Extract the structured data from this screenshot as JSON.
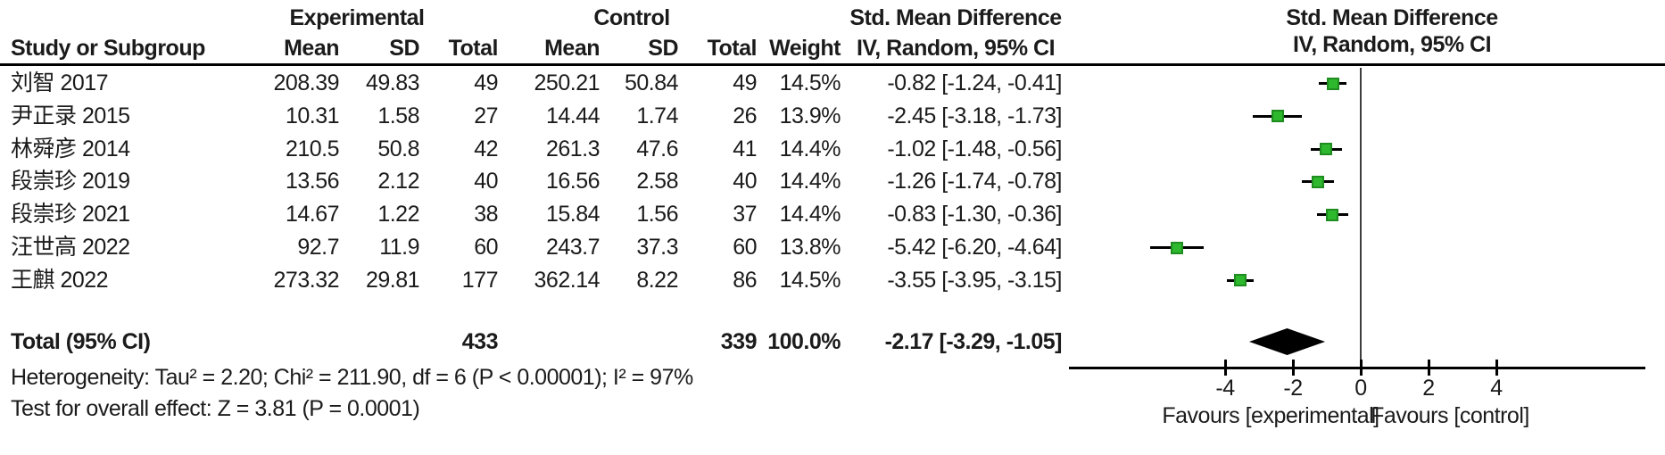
{
  "chart_data": {
    "type": "forest",
    "effect_measure": "Std. Mean Difference",
    "method": "IV, Random, 95% CI",
    "header": {
      "group1": "Experimental",
      "group2": "Control",
      "smd_left": "Std. Mean Difference",
      "smd_right": "Std. Mean Difference",
      "ci_left": "IV, Random, 95% CI",
      "ci_right": "IV, Random, 95% CI",
      "columns": {
        "study": "Study or Subgroup",
        "mean1": "Mean",
        "sd1": "SD",
        "total1": "Total",
        "mean2": "Mean",
        "sd2": "SD",
        "total2": "Total",
        "weight": "Weight"
      }
    },
    "studies": [
      {
        "name": "刘智 2017",
        "exp_mean": "208.39",
        "exp_sd": "49.83",
        "exp_total": "49",
        "ctl_mean": "250.21",
        "ctl_sd": "50.84",
        "ctl_total": "49",
        "weight": "14.5%",
        "ci_label": "-0.82 [-1.24, -0.41]",
        "est": -0.82,
        "lo": -1.24,
        "hi": -0.41
      },
      {
        "name": "尹正录 2015",
        "exp_mean": "10.31",
        "exp_sd": "1.58",
        "exp_total": "27",
        "ctl_mean": "14.44",
        "ctl_sd": "1.74",
        "ctl_total": "26",
        "weight": "13.9%",
        "ci_label": "-2.45 [-3.18, -1.73]",
        "est": -2.45,
        "lo": -3.18,
        "hi": -1.73
      },
      {
        "name": "林舜彦 2014",
        "exp_mean": "210.5",
        "exp_sd": "50.8",
        "exp_total": "42",
        "ctl_mean": "261.3",
        "ctl_sd": "47.6",
        "ctl_total": "41",
        "weight": "14.4%",
        "ci_label": "-1.02 [-1.48, -0.56]",
        "est": -1.02,
        "lo": -1.48,
        "hi": -0.56
      },
      {
        "name": "段崇珍 2019",
        "exp_mean": "13.56",
        "exp_sd": "2.12",
        "exp_total": "40",
        "ctl_mean": "16.56",
        "ctl_sd": "2.58",
        "ctl_total": "40",
        "weight": "14.4%",
        "ci_label": "-1.26 [-1.74, -0.78]",
        "est": -1.26,
        "lo": -1.74,
        "hi": -0.78
      },
      {
        "name": "段崇珍 2021",
        "exp_mean": "14.67",
        "exp_sd": "1.22",
        "exp_total": "38",
        "ctl_mean": "15.84",
        "ctl_sd": "1.56",
        "ctl_total": "37",
        "weight": "14.4%",
        "ci_label": "-0.83 [-1.30, -0.36]",
        "est": -0.83,
        "lo": -1.3,
        "hi": -0.36
      },
      {
        "name": "汪世高 2022",
        "exp_mean": "92.7",
        "exp_sd": "11.9",
        "exp_total": "60",
        "ctl_mean": "243.7",
        "ctl_sd": "37.3",
        "ctl_total": "60",
        "weight": "13.8%",
        "ci_label": "-5.42 [-6.20, -4.64]",
        "est": -5.42,
        "lo": -6.2,
        "hi": -4.64
      },
      {
        "name": "王麒 2022",
        "exp_mean": "273.32",
        "exp_sd": "29.81",
        "exp_total": "177",
        "ctl_mean": "362.14",
        "ctl_sd": "8.22",
        "ctl_total": "86",
        "weight": "14.5%",
        "ci_label": "-3.55 [-3.95, -3.15]",
        "est": -3.55,
        "lo": -3.95,
        "hi": -3.15
      }
    ],
    "overall": {
      "label": "Total (95% CI)",
      "exp_total": "433",
      "ctl_total": "339",
      "weight": "100.0%",
      "ci_label": "-2.17 [-3.29, -1.05]",
      "est": -2.17,
      "lo": -3.29,
      "hi": -1.05
    },
    "heterogeneity": "Heterogeneity: Tau² = 2.20; Chi² = 211.90, df = 6 (P < 0.00001); I² = 97%",
    "overall_effect": "Test for overall effect: Z = 3.81 (P = 0.0001)",
    "axis": {
      "ticks": [
        -4,
        -2,
        0,
        2,
        4
      ],
      "xlim": [
        -8.6,
        8.4
      ],
      "favours_left": "Favours [experimental]",
      "favours_right": "Favours [control]"
    },
    "colors": {
      "marker_fill": "#2eb82e",
      "marker_border": "#1f8c1f",
      "diamond": "#000000",
      "axis": "#000000",
      "zero_line": "#3d3d3d"
    }
  }
}
